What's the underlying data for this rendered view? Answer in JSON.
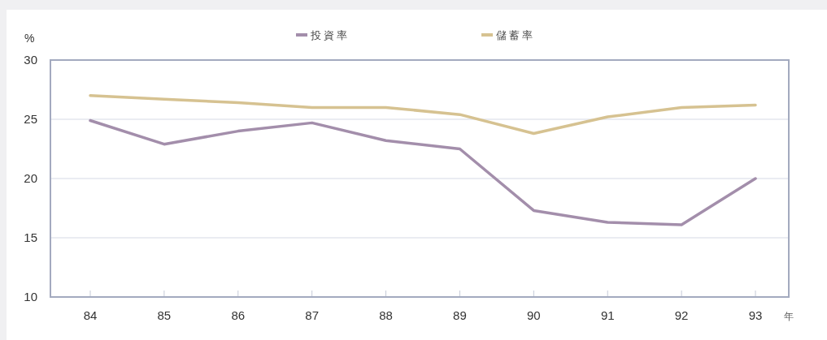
{
  "chart_data": {
    "type": "line",
    "xlabel": "年",
    "ylabel": "%",
    "categories": [
      "84",
      "85",
      "86",
      "87",
      "88",
      "89",
      "90",
      "91",
      "92",
      "93"
    ],
    "series": [
      {
        "name": "投資率",
        "color": "#a38eab",
        "values": [
          24.9,
          22.9,
          24.0,
          24.7,
          23.2,
          22.5,
          17.3,
          16.3,
          16.1,
          20.0
        ]
      },
      {
        "name": "儲蓄率",
        "color": "#d6c291",
        "values": [
          27.0,
          26.7,
          26.4,
          26.0,
          26.0,
          25.4,
          23.8,
          25.2,
          26.0,
          26.2
        ]
      }
    ],
    "ylim": [
      10,
      30
    ],
    "yticks": [
      10,
      15,
      20,
      25,
      30
    ],
    "grid": "y",
    "legend": "top"
  }
}
